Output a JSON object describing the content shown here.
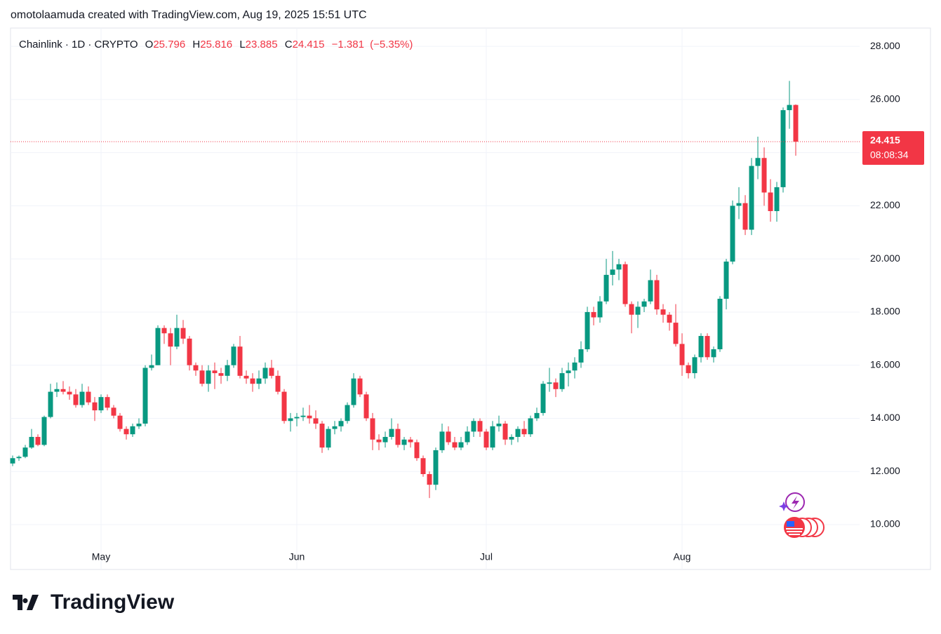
{
  "chart_data": {
    "type": "candlestick",
    "attribution": "omotolaamuda created with TradingView.com, Aug 19, 2025 15:51 UTC",
    "title": "Chainlink · 1D · CRYPTO",
    "legend": {
      "labels": [
        "O",
        "H",
        "L",
        "C"
      ],
      "values": [
        25.796,
        25.816,
        23.885,
        24.415
      ],
      "change": {
        "value": -1.381,
        "label": "−1.381"
      },
      "change_pct": {
        "value": -5.35,
        "label": "(−5.35%)"
      }
    },
    "last_price": 24.415,
    "countdown": "08:08:34",
    "logo": "TradingView",
    "up_color": "#089981",
    "down_color": "#f23645",
    "grid": true,
    "ylim": [
      8.31,
      28.69
    ],
    "yticks": [
      {
        "value": 10,
        "label": "10.000"
      },
      {
        "value": 12,
        "label": "12.000"
      },
      {
        "value": 14,
        "label": "14.000"
      },
      {
        "value": 16,
        "label": "16.000"
      },
      {
        "value": 18,
        "label": "18.000"
      },
      {
        "value": 20,
        "label": "20.000"
      },
      {
        "value": 22,
        "label": "22.000"
      },
      {
        "value": 24,
        "label": "24.000"
      },
      {
        "value": 26,
        "label": "26.000"
      },
      {
        "value": 28,
        "label": "28.000"
      }
    ],
    "categories": [
      null,
      null,
      null,
      null,
      null,
      null,
      null,
      null,
      null,
      null,
      null,
      null,
      null,
      null,
      "May",
      null,
      null,
      null,
      null,
      null,
      null,
      null,
      null,
      null,
      null,
      null,
      null,
      null,
      null,
      null,
      null,
      null,
      null,
      null,
      null,
      null,
      null,
      null,
      null,
      null,
      null,
      null,
      null,
      null,
      null,
      "Jun",
      null,
      null,
      null,
      null,
      null,
      null,
      null,
      null,
      null,
      null,
      null,
      null,
      null,
      null,
      null,
      null,
      null,
      null,
      null,
      null,
      null,
      null,
      null,
      null,
      null,
      null,
      null,
      null,
      null,
      "Jul",
      null,
      null,
      null,
      null,
      null,
      null,
      null,
      null,
      null,
      null,
      null,
      null,
      null,
      null,
      null,
      null,
      null,
      null,
      null,
      null,
      null,
      null,
      null,
      null,
      null,
      null,
      null,
      null,
      null,
      null,
      "Aug",
      null,
      null,
      null,
      null,
      null,
      null,
      null,
      null,
      null,
      null,
      null,
      null,
      null,
      null,
      null,
      null,
      null,
      null
    ],
    "open": [
      12.3,
      12.5,
      12.55,
      12.9,
      13.3,
      13.0,
      14.05,
      15.0,
      15.1,
      15.0,
      14.9,
      14.5,
      15.0,
      14.6,
      14.3,
      14.8,
      14.4,
      14.1,
      13.6,
      13.4,
      13.7,
      13.8,
      15.9,
      16.0,
      17.4,
      17.2,
      16.7,
      17.4,
      17.0,
      16.0,
      15.8,
      15.3,
      15.8,
      15.7,
      15.6,
      16.0,
      16.7,
      15.6,
      15.5,
      15.3,
      15.5,
      15.9,
      15.6,
      15.0,
      13.9,
      14.0,
      14.05,
      14.1,
      14.0,
      13.8,
      12.9,
      13.6,
      13.7,
      13.9,
      14.5,
      15.5,
      14.9,
      14.0,
      13.2,
      13.1,
      13.3,
      13.6,
      13.0,
      13.2,
      13.1,
      12.5,
      11.9,
      11.5,
      12.8,
      13.5,
      13.1,
      12.9,
      13.1,
      13.5,
      13.9,
      13.5,
      12.9,
      13.7,
      13.8,
      13.2,
      13.3,
      13.6,
      13.4,
      14.0,
      14.2,
      15.3,
      15.35,
      15.1,
      15.7,
      15.8,
      16.1,
      16.6,
      18.0,
      17.8,
      18.4,
      19.4,
      19.6,
      19.8,
      18.3,
      17.9,
      18.2,
      18.4,
      19.2,
      18.1,
      17.9,
      17.6,
      16.8,
      16.0,
      15.7,
      16.3,
      17.1,
      16.3,
      16.6,
      18.5,
      19.9,
      22.0,
      22.1,
      21.1,
      23.5,
      23.8,
      22.5,
      21.8,
      22.7,
      25.6,
      25.796
    ],
    "high": [
      12.6,
      12.6,
      13.0,
      13.6,
      13.4,
      14.1,
      15.3,
      15.35,
      15.4,
      15.2,
      15.1,
      15.3,
      15.2,
      14.8,
      14.9,
      14.9,
      14.5,
      14.2,
      13.7,
      13.8,
      14.0,
      16.0,
      16.4,
      17.5,
      17.5,
      17.4,
      17.9,
      17.7,
      17.1,
      16.1,
      16.0,
      16.0,
      16.1,
      15.9,
      16.2,
      16.8,
      17.1,
      15.8,
      15.7,
      15.8,
      16.1,
      16.2,
      15.8,
      15.1,
      14.2,
      14.2,
      14.4,
      14.5,
      14.3,
      13.9,
      13.7,
      13.9,
      14.0,
      14.6,
      15.7,
      15.6,
      15.0,
      14.2,
      13.4,
      13.5,
      14.0,
      13.8,
      13.3,
      13.3,
      13.2,
      12.6,
      12.0,
      12.9,
      13.8,
      13.7,
      13.3,
      13.3,
      13.7,
      14.0,
      14.0,
      13.6,
      13.9,
      14.1,
      13.9,
      13.4,
      13.7,
      13.9,
      14.1,
      14.4,
      15.4,
      15.9,
      15.5,
      15.9,
      16.1,
      16.3,
      16.9,
      18.2,
      18.2,
      18.6,
      20.0,
      20.3,
      20.0,
      19.9,
      18.4,
      18.4,
      18.5,
      19.6,
      19.4,
      18.3,
      18.0,
      18.3,
      17.2,
      16.1,
      16.4,
      17.2,
      17.2,
      16.7,
      18.6,
      20.0,
      22.2,
      22.7,
      22.4,
      23.8,
      24.6,
      24.2,
      23.0,
      22.9,
      25.7,
      26.7,
      25.816
    ],
    "low": [
      12.2,
      12.4,
      12.5,
      12.85,
      12.95,
      12.95,
      14.0,
      14.8,
      14.9,
      14.7,
      14.4,
      14.4,
      14.5,
      13.9,
      14.2,
      14.3,
      14.0,
      13.5,
      13.2,
      13.3,
      13.6,
      13.7,
      15.8,
      16.0,
      16.8,
      16.0,
      16.6,
      16.8,
      15.8,
      15.6,
      15.2,
      15.0,
      15.1,
      15.3,
      15.4,
      15.9,
      15.5,
      15.3,
      15.0,
      15.1,
      15.3,
      15.5,
      14.9,
      13.8,
      13.5,
      13.7,
      13.9,
      13.8,
      13.6,
      12.7,
      12.8,
      13.4,
      13.5,
      13.8,
      14.4,
      14.8,
      13.9,
      12.8,
      12.8,
      12.9,
      13.2,
      12.9,
      12.8,
      12.9,
      12.4,
      11.8,
      11.0,
      11.3,
      12.7,
      13.0,
      12.8,
      12.8,
      13.0,
      13.3,
      13.3,
      12.8,
      12.8,
      13.5,
      13.0,
      13.0,
      13.1,
      13.3,
      13.3,
      13.9,
      14.1,
      15.0,
      14.8,
      15.0,
      15.2,
      15.5,
      15.9,
      16.5,
      17.5,
      17.6,
      18.3,
      19.0,
      19.2,
      18.2,
      17.2,
      17.4,
      18.0,
      18.3,
      17.9,
      17.6,
      17.3,
      16.7,
      15.6,
      15.5,
      15.5,
      16.1,
      16.2,
      16.1,
      16.5,
      18.1,
      19.8,
      21.5,
      20.9,
      20.9,
      23.0,
      22.0,
      21.4,
      21.4,
      22.5,
      24.9,
      23.885
    ],
    "close": [
      12.5,
      12.55,
      12.9,
      13.3,
      13.0,
      14.05,
      15.0,
      15.1,
      15.0,
      14.9,
      14.5,
      15.0,
      14.6,
      14.3,
      14.8,
      14.4,
      14.1,
      13.6,
      13.4,
      13.7,
      13.8,
      15.9,
      16.0,
      17.4,
      17.2,
      16.7,
      17.4,
      17.0,
      16.0,
      15.8,
      15.3,
      15.8,
      15.7,
      15.6,
      16.0,
      16.7,
      15.6,
      15.5,
      15.3,
      15.5,
      15.9,
      15.6,
      15.0,
      13.9,
      14.0,
      14.05,
      14.1,
      14.0,
      13.8,
      12.9,
      13.6,
      13.7,
      13.9,
      14.5,
      15.5,
      14.9,
      14.0,
      13.2,
      13.1,
      13.3,
      13.6,
      13.0,
      13.2,
      13.1,
      12.5,
      11.9,
      11.5,
      12.8,
      13.5,
      13.1,
      12.9,
      13.1,
      13.5,
      13.9,
      13.5,
      12.9,
      13.7,
      13.8,
      13.2,
      13.3,
      13.6,
      13.4,
      14.0,
      14.2,
      15.3,
      15.35,
      15.1,
      15.7,
      15.8,
      16.1,
      16.6,
      18.0,
      17.8,
      18.4,
      19.4,
      19.6,
      19.8,
      18.3,
      17.9,
      18.2,
      18.4,
      19.2,
      18.1,
      17.9,
      17.6,
      16.8,
      16.0,
      15.7,
      16.3,
      17.1,
      16.3,
      16.6,
      18.5,
      19.9,
      22.0,
      22.1,
      21.1,
      23.5,
      23.8,
      22.5,
      21.8,
      22.7,
      25.6,
      25.796,
      24.415
    ]
  }
}
